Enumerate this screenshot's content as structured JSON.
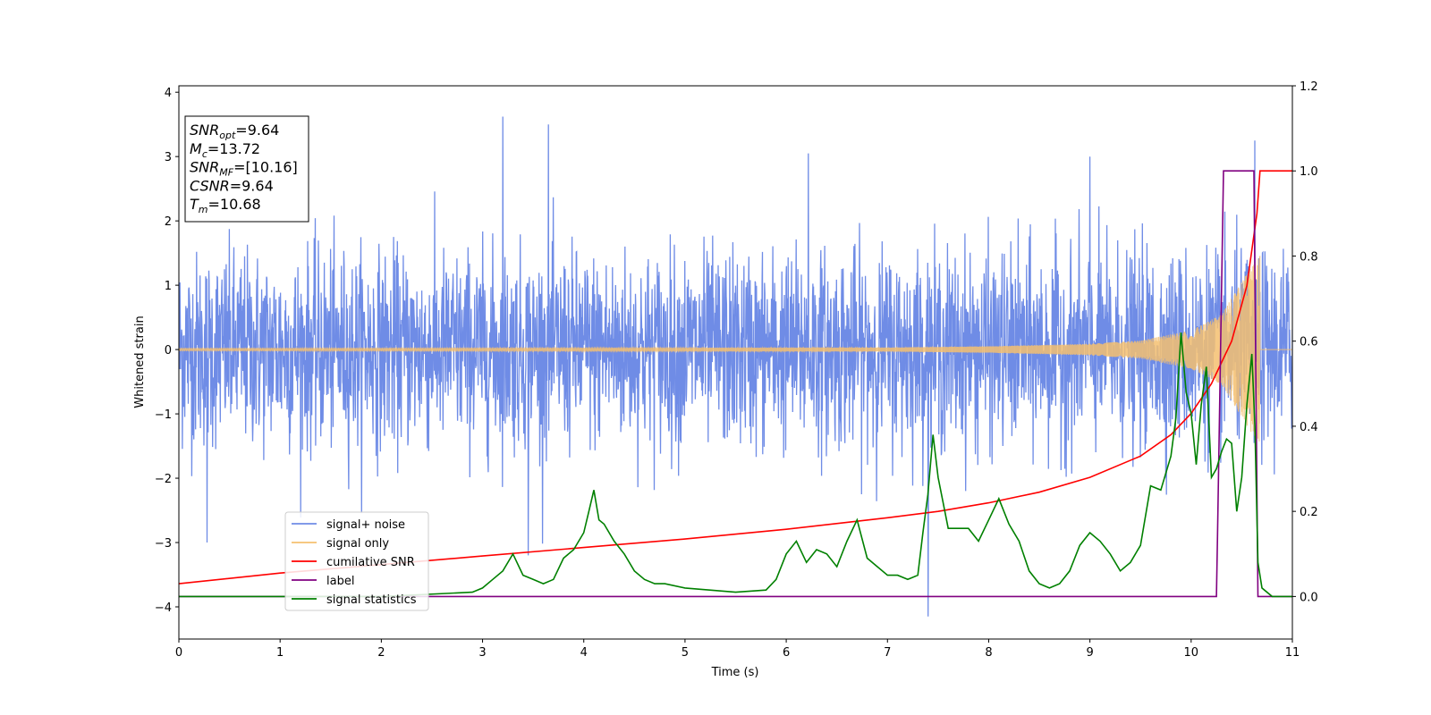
{
  "chart_data": {
    "type": "line",
    "xlabel": "Time (s)",
    "ylabel": "Whitened strain",
    "xlim": [
      0,
      11
    ],
    "ylim": [
      -4.5,
      4.1
    ],
    "y2lim": [
      -0.1,
      1.2
    ],
    "x_ticks": [
      0,
      1,
      2,
      3,
      4,
      5,
      6,
      7,
      8,
      9,
      10,
      11
    ],
    "y_ticks": [
      -4,
      -3,
      -2,
      -1,
      0,
      1,
      2,
      3,
      4
    ],
    "y2_ticks": [
      0.0,
      0.2,
      0.4,
      0.6,
      0.8,
      1.0,
      1.2
    ],
    "x_tick_labels": [
      "0",
      "1",
      "2",
      "3",
      "4",
      "5",
      "6",
      "7",
      "8",
      "9",
      "10",
      "11"
    ],
    "y_tick_labels": [
      "−4",
      "−3",
      "−2",
      "−1",
      "0",
      "1",
      "2",
      "3",
      "4"
    ],
    "y2_tick_labels": [
      "0.0",
      "0.2",
      "0.4",
      "0.6",
      "0.8",
      "1.0",
      "1.2"
    ],
    "grid": false,
    "legend_position": "lower-left",
    "annotation": {
      "lines": [
        {
          "sym": "SNR",
          "sub": "opt",
          "val": "=9.64"
        },
        {
          "sym": "M",
          "sub": "c",
          "val": "=13.72"
        },
        {
          "sym": "SNR",
          "sub": "MF",
          "val": "=[10.16]"
        },
        {
          "sym": "CSNR",
          "sub": "",
          "val": "=9.64"
        },
        {
          "sym": "T",
          "sub": "m",
          "val": "=10.68"
        }
      ]
    },
    "series": [
      {
        "name": "signal+ noise",
        "color": "#6f8ce6",
        "axis": "left",
        "kind": "noise",
        "envelope": {
          "x": [
            0,
            3,
            6,
            9,
            10,
            11
          ],
          "sigma": [
            0.75,
            0.75,
            0.75,
            0.75,
            0.75,
            0.75
          ]
        },
        "extremes": [
          [
            3.2,
            3.62
          ],
          [
            3.65,
            3.5
          ],
          [
            7.4,
            -4.15
          ],
          [
            10.63,
            3.25
          ],
          [
            6.22,
            3.05
          ],
          [
            3.45,
            -3.2
          ],
          [
            9.0,
            3.0
          ],
          [
            0.28,
            -3.0
          ]
        ]
      },
      {
        "name": "signal only",
        "color": "#f5c070",
        "axis": "left",
        "kind": "chirp",
        "amplitude": {
          "x": [
            0,
            7,
            8,
            9,
            9.5,
            10,
            10.3,
            10.6,
            10.68
          ],
          "a": [
            0.02,
            0.03,
            0.05,
            0.09,
            0.14,
            0.3,
            0.55,
            1.3,
            1.45
          ]
        },
        "cutoff": 10.68
      },
      {
        "name": "cumilative SNR",
        "color": "#ff0000",
        "axis": "right",
        "x": [
          0,
          1,
          2,
          3,
          4,
          5,
          6,
          7,
          7.5,
          8,
          8.5,
          9,
          9.5,
          9.8,
          10,
          10.2,
          10.4,
          10.55,
          10.65,
          10.68,
          11
        ],
        "values": [
          0.03,
          0.055,
          0.075,
          0.095,
          0.115,
          0.135,
          0.158,
          0.185,
          0.2,
          0.22,
          0.245,
          0.28,
          0.33,
          0.38,
          0.43,
          0.5,
          0.6,
          0.73,
          0.9,
          1.0,
          1.0
        ]
      },
      {
        "name": "label",
        "color": "#800080",
        "axis": "right",
        "x": [
          0,
          10.25,
          10.26,
          10.32,
          10.62,
          10.66,
          11
        ],
        "values": [
          0,
          0,
          0.13,
          1.0,
          1.0,
          0,
          0
        ]
      },
      {
        "name": "signal statistics",
        "color": "#008000",
        "axis": "right",
        "x": [
          0,
          1,
          2,
          2.9,
          3.0,
          3.1,
          3.2,
          3.3,
          3.4,
          3.5,
          3.6,
          3.7,
          3.8,
          3.9,
          4.0,
          4.05,
          4.1,
          4.15,
          4.2,
          4.3,
          4.4,
          4.5,
          4.6,
          4.7,
          4.8,
          5.0,
          5.5,
          5.8,
          5.9,
          6.0,
          6.1,
          6.2,
          6.3,
          6.4,
          6.5,
          6.6,
          6.7,
          6.8,
          6.9,
          7.0,
          7.1,
          7.2,
          7.3,
          7.35,
          7.4,
          7.45,
          7.5,
          7.6,
          7.7,
          7.8,
          7.9,
          8.0,
          8.1,
          8.2,
          8.3,
          8.4,
          8.5,
          8.6,
          8.7,
          8.8,
          8.9,
          9.0,
          9.1,
          9.2,
          9.3,
          9.4,
          9.5,
          9.6,
          9.7,
          9.8,
          9.85,
          9.9,
          9.95,
          10.0,
          10.05,
          10.1,
          10.15,
          10.2,
          10.25,
          10.3,
          10.35,
          10.4,
          10.45,
          10.5,
          10.55,
          10.6,
          10.63,
          10.66,
          10.7,
          10.8,
          11
        ],
        "values": [
          0.0,
          0.0,
          0.0,
          0.01,
          0.02,
          0.04,
          0.06,
          0.1,
          0.05,
          0.04,
          0.03,
          0.04,
          0.09,
          0.11,
          0.15,
          0.2,
          0.25,
          0.18,
          0.17,
          0.13,
          0.1,
          0.06,
          0.04,
          0.03,
          0.03,
          0.02,
          0.01,
          0.015,
          0.04,
          0.1,
          0.13,
          0.08,
          0.11,
          0.1,
          0.07,
          0.13,
          0.18,
          0.09,
          0.07,
          0.05,
          0.05,
          0.04,
          0.05,
          0.15,
          0.24,
          0.38,
          0.28,
          0.16,
          0.16,
          0.16,
          0.13,
          0.18,
          0.23,
          0.17,
          0.13,
          0.06,
          0.03,
          0.02,
          0.03,
          0.06,
          0.12,
          0.15,
          0.13,
          0.1,
          0.06,
          0.08,
          0.12,
          0.26,
          0.25,
          0.33,
          0.42,
          0.62,
          0.48,
          0.43,
          0.31,
          0.45,
          0.54,
          0.28,
          0.3,
          0.34,
          0.37,
          0.36,
          0.2,
          0.28,
          0.45,
          0.57,
          0.4,
          0.08,
          0.02,
          0.0,
          0.0
        ]
      }
    ]
  }
}
